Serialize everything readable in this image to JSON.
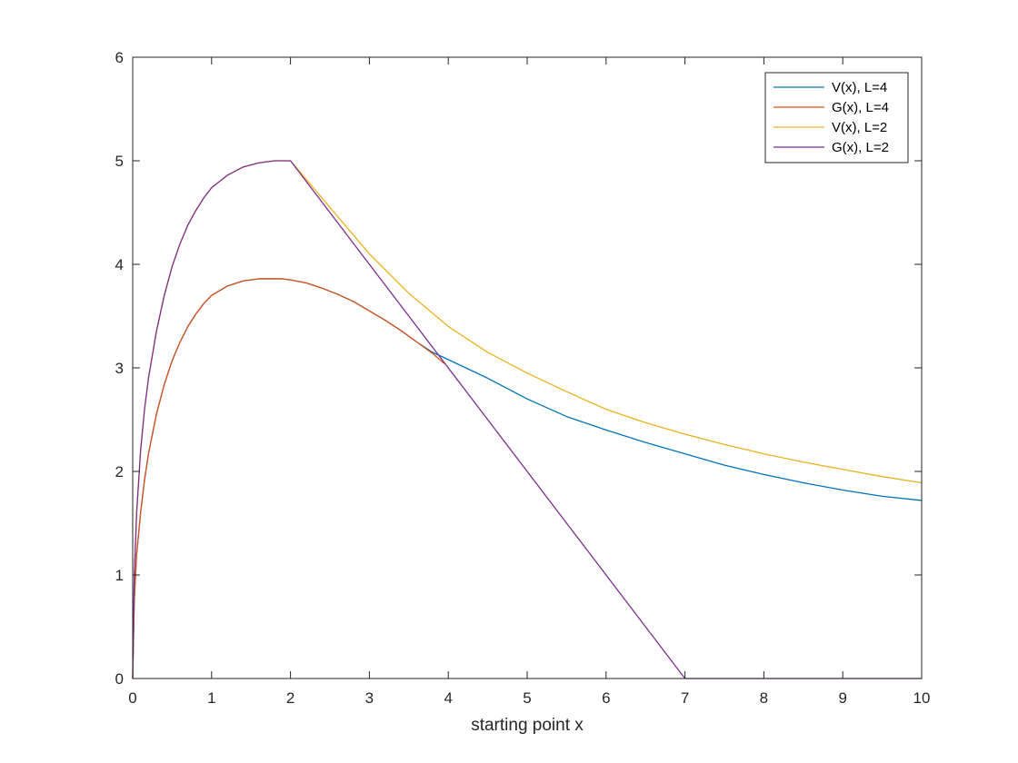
{
  "chart_data": {
    "type": "line",
    "title": "",
    "xlabel": "starting point x",
    "ylabel": "",
    "xlim": [
      0,
      10
    ],
    "ylim": [
      0,
      6
    ],
    "xticks": [
      0,
      1,
      2,
      3,
      4,
      5,
      6,
      7,
      8,
      9,
      10
    ],
    "yticks": [
      0,
      1,
      2,
      3,
      4,
      5,
      6
    ],
    "grid": false,
    "legend_position": "top-right",
    "series": [
      {
        "name": "V(x), L=4",
        "color": "#0072BD",
        "points": [
          [
            0,
            0
          ],
          [
            0.02,
            0.76
          ],
          [
            0.05,
            1.2
          ],
          [
            0.1,
            1.6
          ],
          [
            0.15,
            1.92
          ],
          [
            0.2,
            2.17
          ],
          [
            0.3,
            2.55
          ],
          [
            0.4,
            2.84
          ],
          [
            0.5,
            3.07
          ],
          [
            0.6,
            3.25
          ],
          [
            0.7,
            3.4
          ],
          [
            0.8,
            3.52
          ],
          [
            0.9,
            3.62
          ],
          [
            1.0,
            3.7
          ],
          [
            1.2,
            3.79
          ],
          [
            1.4,
            3.84
          ],
          [
            1.6,
            3.86
          ],
          [
            1.8,
            3.86
          ],
          [
            1.9,
            3.86
          ],
          [
            2.0,
            3.85
          ],
          [
            2.2,
            3.82
          ],
          [
            2.4,
            3.77
          ],
          [
            2.6,
            3.71
          ],
          [
            2.8,
            3.64
          ],
          [
            3.0,
            3.55
          ],
          [
            3.2,
            3.46
          ],
          [
            3.4,
            3.36
          ],
          [
            3.6,
            3.25
          ],
          [
            3.8,
            3.15
          ],
          [
            4.0,
            3.08
          ],
          [
            4.5,
            2.9
          ],
          [
            5.0,
            2.7
          ],
          [
            5.5,
            2.53
          ],
          [
            6.0,
            2.4
          ],
          [
            6.5,
            2.28
          ],
          [
            7.0,
            2.17
          ],
          [
            7.5,
            2.06
          ],
          [
            8.0,
            1.97
          ],
          [
            8.5,
            1.89
          ],
          [
            9.0,
            1.82
          ],
          [
            9.5,
            1.76
          ],
          [
            10.0,
            1.72
          ]
        ]
      },
      {
        "name": "G(x), L=4",
        "color": "#D95319",
        "points": [
          [
            0,
            0
          ],
          [
            0.02,
            0.76
          ],
          [
            0.05,
            1.2
          ],
          [
            0.1,
            1.6
          ],
          [
            0.15,
            1.92
          ],
          [
            0.2,
            2.17
          ],
          [
            0.3,
            2.55
          ],
          [
            0.4,
            2.84
          ],
          [
            0.5,
            3.07
          ],
          [
            0.6,
            3.25
          ],
          [
            0.7,
            3.4
          ],
          [
            0.8,
            3.52
          ],
          [
            0.9,
            3.62
          ],
          [
            1.0,
            3.7
          ],
          [
            1.2,
            3.79
          ],
          [
            1.4,
            3.84
          ],
          [
            1.6,
            3.86
          ],
          [
            1.8,
            3.86
          ],
          [
            1.9,
            3.86
          ],
          [
            2.0,
            3.85
          ],
          [
            2.2,
            3.82
          ],
          [
            2.4,
            3.77
          ],
          [
            2.6,
            3.71
          ],
          [
            2.8,
            3.64
          ],
          [
            3.0,
            3.55
          ],
          [
            3.2,
            3.46
          ],
          [
            3.4,
            3.36
          ],
          [
            3.6,
            3.25
          ],
          [
            3.8,
            3.14
          ],
          [
            3.95,
            3.04
          ]
        ]
      },
      {
        "name": "V(x), L=2",
        "color": "#EDB120",
        "points": [
          [
            0,
            0
          ],
          [
            0.02,
            1.0
          ],
          [
            0.05,
            1.6
          ],
          [
            0.1,
            2.2
          ],
          [
            0.15,
            2.6
          ],
          [
            0.2,
            2.9
          ],
          [
            0.3,
            3.35
          ],
          [
            0.4,
            3.7
          ],
          [
            0.5,
            3.98
          ],
          [
            0.6,
            4.2
          ],
          [
            0.7,
            4.38
          ],
          [
            0.8,
            4.52
          ],
          [
            0.9,
            4.64
          ],
          [
            1.0,
            4.74
          ],
          [
            1.2,
            4.86
          ],
          [
            1.4,
            4.94
          ],
          [
            1.6,
            4.98
          ],
          [
            1.8,
            5.0
          ],
          [
            2.0,
            5.0
          ],
          [
            2.5,
            4.55
          ],
          [
            3.0,
            4.1
          ],
          [
            3.5,
            3.72
          ],
          [
            4.0,
            3.4
          ],
          [
            4.5,
            3.15
          ],
          [
            5.0,
            2.95
          ],
          [
            5.5,
            2.77
          ],
          [
            6.0,
            2.6
          ],
          [
            6.5,
            2.47
          ],
          [
            7.0,
            2.36
          ],
          [
            7.5,
            2.26
          ],
          [
            8.0,
            2.17
          ],
          [
            8.5,
            2.09
          ],
          [
            9.0,
            2.02
          ],
          [
            9.5,
            1.95
          ],
          [
            10.0,
            1.89
          ]
        ]
      },
      {
        "name": "G(x), L=2",
        "color": "#7E2F8E",
        "points": [
          [
            0,
            0
          ],
          [
            0.02,
            1.0
          ],
          [
            0.05,
            1.6
          ],
          [
            0.1,
            2.2
          ],
          [
            0.15,
            2.6
          ],
          [
            0.2,
            2.9
          ],
          [
            0.3,
            3.35
          ],
          [
            0.4,
            3.7
          ],
          [
            0.5,
            3.98
          ],
          [
            0.6,
            4.2
          ],
          [
            0.7,
            4.38
          ],
          [
            0.8,
            4.52
          ],
          [
            0.9,
            4.64
          ],
          [
            1.0,
            4.74
          ],
          [
            1.2,
            4.86
          ],
          [
            1.4,
            4.94
          ],
          [
            1.6,
            4.98
          ],
          [
            1.8,
            5.0
          ],
          [
            2.0,
            5.0
          ],
          [
            7.0,
            0
          ],
          [
            10.0,
            0
          ]
        ]
      }
    ]
  }
}
